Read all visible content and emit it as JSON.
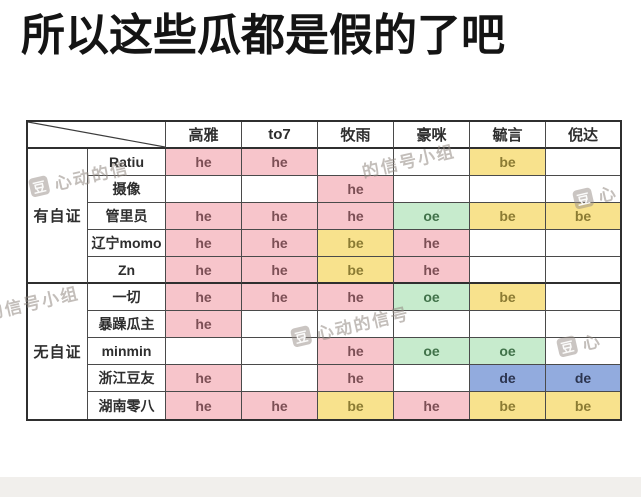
{
  "title": "所以这些瓜都是假的了吧",
  "chart_data": {
    "type": "table",
    "title": "所以这些瓜都是假的了吧",
    "corner_label": "",
    "columns": [
      "高雅",
      "to7",
      "牧雨",
      "豪咪",
      "毓言",
      "倪达"
    ],
    "row_groups": [
      {
        "group": "有自证",
        "rows": [
          {
            "name": "Ratiu",
            "values": [
              "he",
              "he",
              "",
              "",
              "be",
              ""
            ]
          },
          {
            "name": "摄像",
            "values": [
              "",
              "",
              "he",
              "",
              "",
              ""
            ]
          },
          {
            "name": "管里员",
            "values": [
              "he",
              "he",
              "he",
              "oe",
              "be",
              "be"
            ]
          },
          {
            "name": "辽宁momo",
            "values": [
              "he",
              "he",
              "be",
              "he",
              "",
              ""
            ]
          },
          {
            "name": "Zn",
            "values": [
              "he",
              "he",
              "be",
              "he",
              "",
              ""
            ]
          }
        ]
      },
      {
        "group": "无自证",
        "rows": [
          {
            "name": "一切",
            "values": [
              "he",
              "he",
              "he",
              "oe",
              "be",
              ""
            ]
          },
          {
            "name": "暴躁瓜主",
            "values": [
              "he",
              "",
              "",
              "",
              "",
              ""
            ]
          },
          {
            "name": "minmin",
            "values": [
              "",
              "",
              "he",
              "oe",
              "oe",
              ""
            ]
          },
          {
            "name": "浙江豆友",
            "values": [
              "he",
              "",
              "he",
              "",
              "de",
              "de"
            ]
          },
          {
            "name": "湖南零八",
            "values": [
              "he",
              "he",
              "be",
              "he",
              "be",
              "be"
            ]
          }
        ]
      }
    ],
    "value_color_map": {
      "he": "pink",
      "be": "yellow",
      "oe": "green",
      "de": "blue"
    },
    "layout_hints": {
      "grid": "on",
      "header_row": true,
      "group_column": true,
      "diagonal_corner": true
    }
  },
  "colors": {
    "pink_bg": "#f7c5cb",
    "pink_text": "#7c4f55",
    "yellow_bg": "#f8e28d",
    "yellow_text": "#8b7b33",
    "green_bg": "#c7ebcd",
    "green_text": "#41724a",
    "blue_bg": "#92abde",
    "blue_text": "#2c3550",
    "border": "#2f2f2f",
    "bottom_band": "#f1efec"
  },
  "watermark": {
    "logo_char": "豆",
    "full_text": "心动的信号小组",
    "instances": [
      {
        "text": "心动的信",
        "logo": true
      },
      {
        "text": "的信号小组",
        "logo": false
      },
      {
        "text": "心",
        "logo": true
      },
      {
        "text": "的信号小组",
        "logo": false
      },
      {
        "text": "心动的信号",
        "logo": true
      },
      {
        "text": "心",
        "logo": true
      }
    ]
  }
}
